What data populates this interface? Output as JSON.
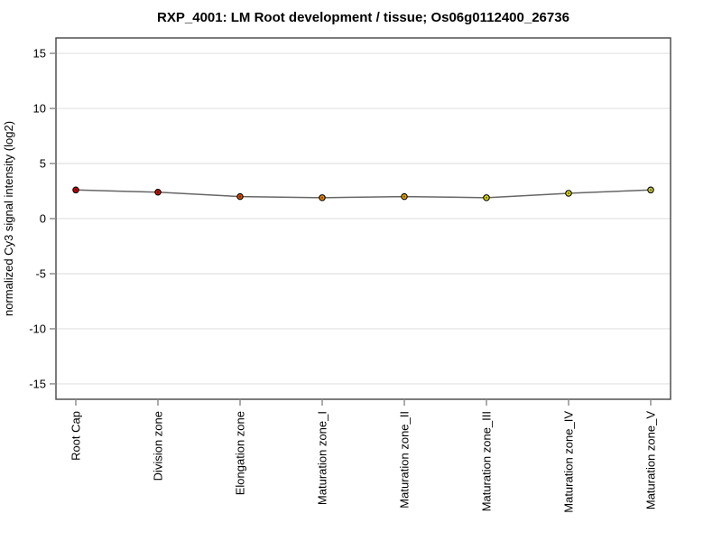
{
  "figure": {
    "title": "RXP_4001: LM Root development / tissue; Os06g0112400_26736"
  },
  "chart_data": {
    "type": "line",
    "title": "RXP_4001: LM Root development / tissue; Os06g0112400_26736",
    "xlabel": "",
    "ylabel": "normalized Cy3 signal intensity (log2)",
    "categories": [
      "Root Cap",
      "Division zone",
      "Elongation zone",
      "Maturation zone_I",
      "Maturation zone_II",
      "Maturation zone_III",
      "Maturation zone_IV",
      "Maturation zone_V"
    ],
    "values": [
      2.6,
      2.4,
      2.0,
      1.9,
      2.0,
      1.9,
      2.3,
      2.6
    ],
    "point_colors": [
      "#cc0000",
      "#d01500",
      "#dd5500",
      "#ee8800",
      "#eeaa00",
      "#dddd00",
      "#dddd11",
      "#cccc44"
    ],
    "yticks": [
      -15,
      -10,
      -5,
      0,
      5,
      10,
      15
    ],
    "ylim": [
      -16.4,
      16.4
    ],
    "grid": true,
    "legend": "none",
    "colors": {
      "line": "#666666",
      "frame": "#444444",
      "gridline": "#e2e2e2",
      "tick": "#888888",
      "text": "#000000",
      "point_outline": "#000000",
      "background": "#ffffff"
    }
  }
}
